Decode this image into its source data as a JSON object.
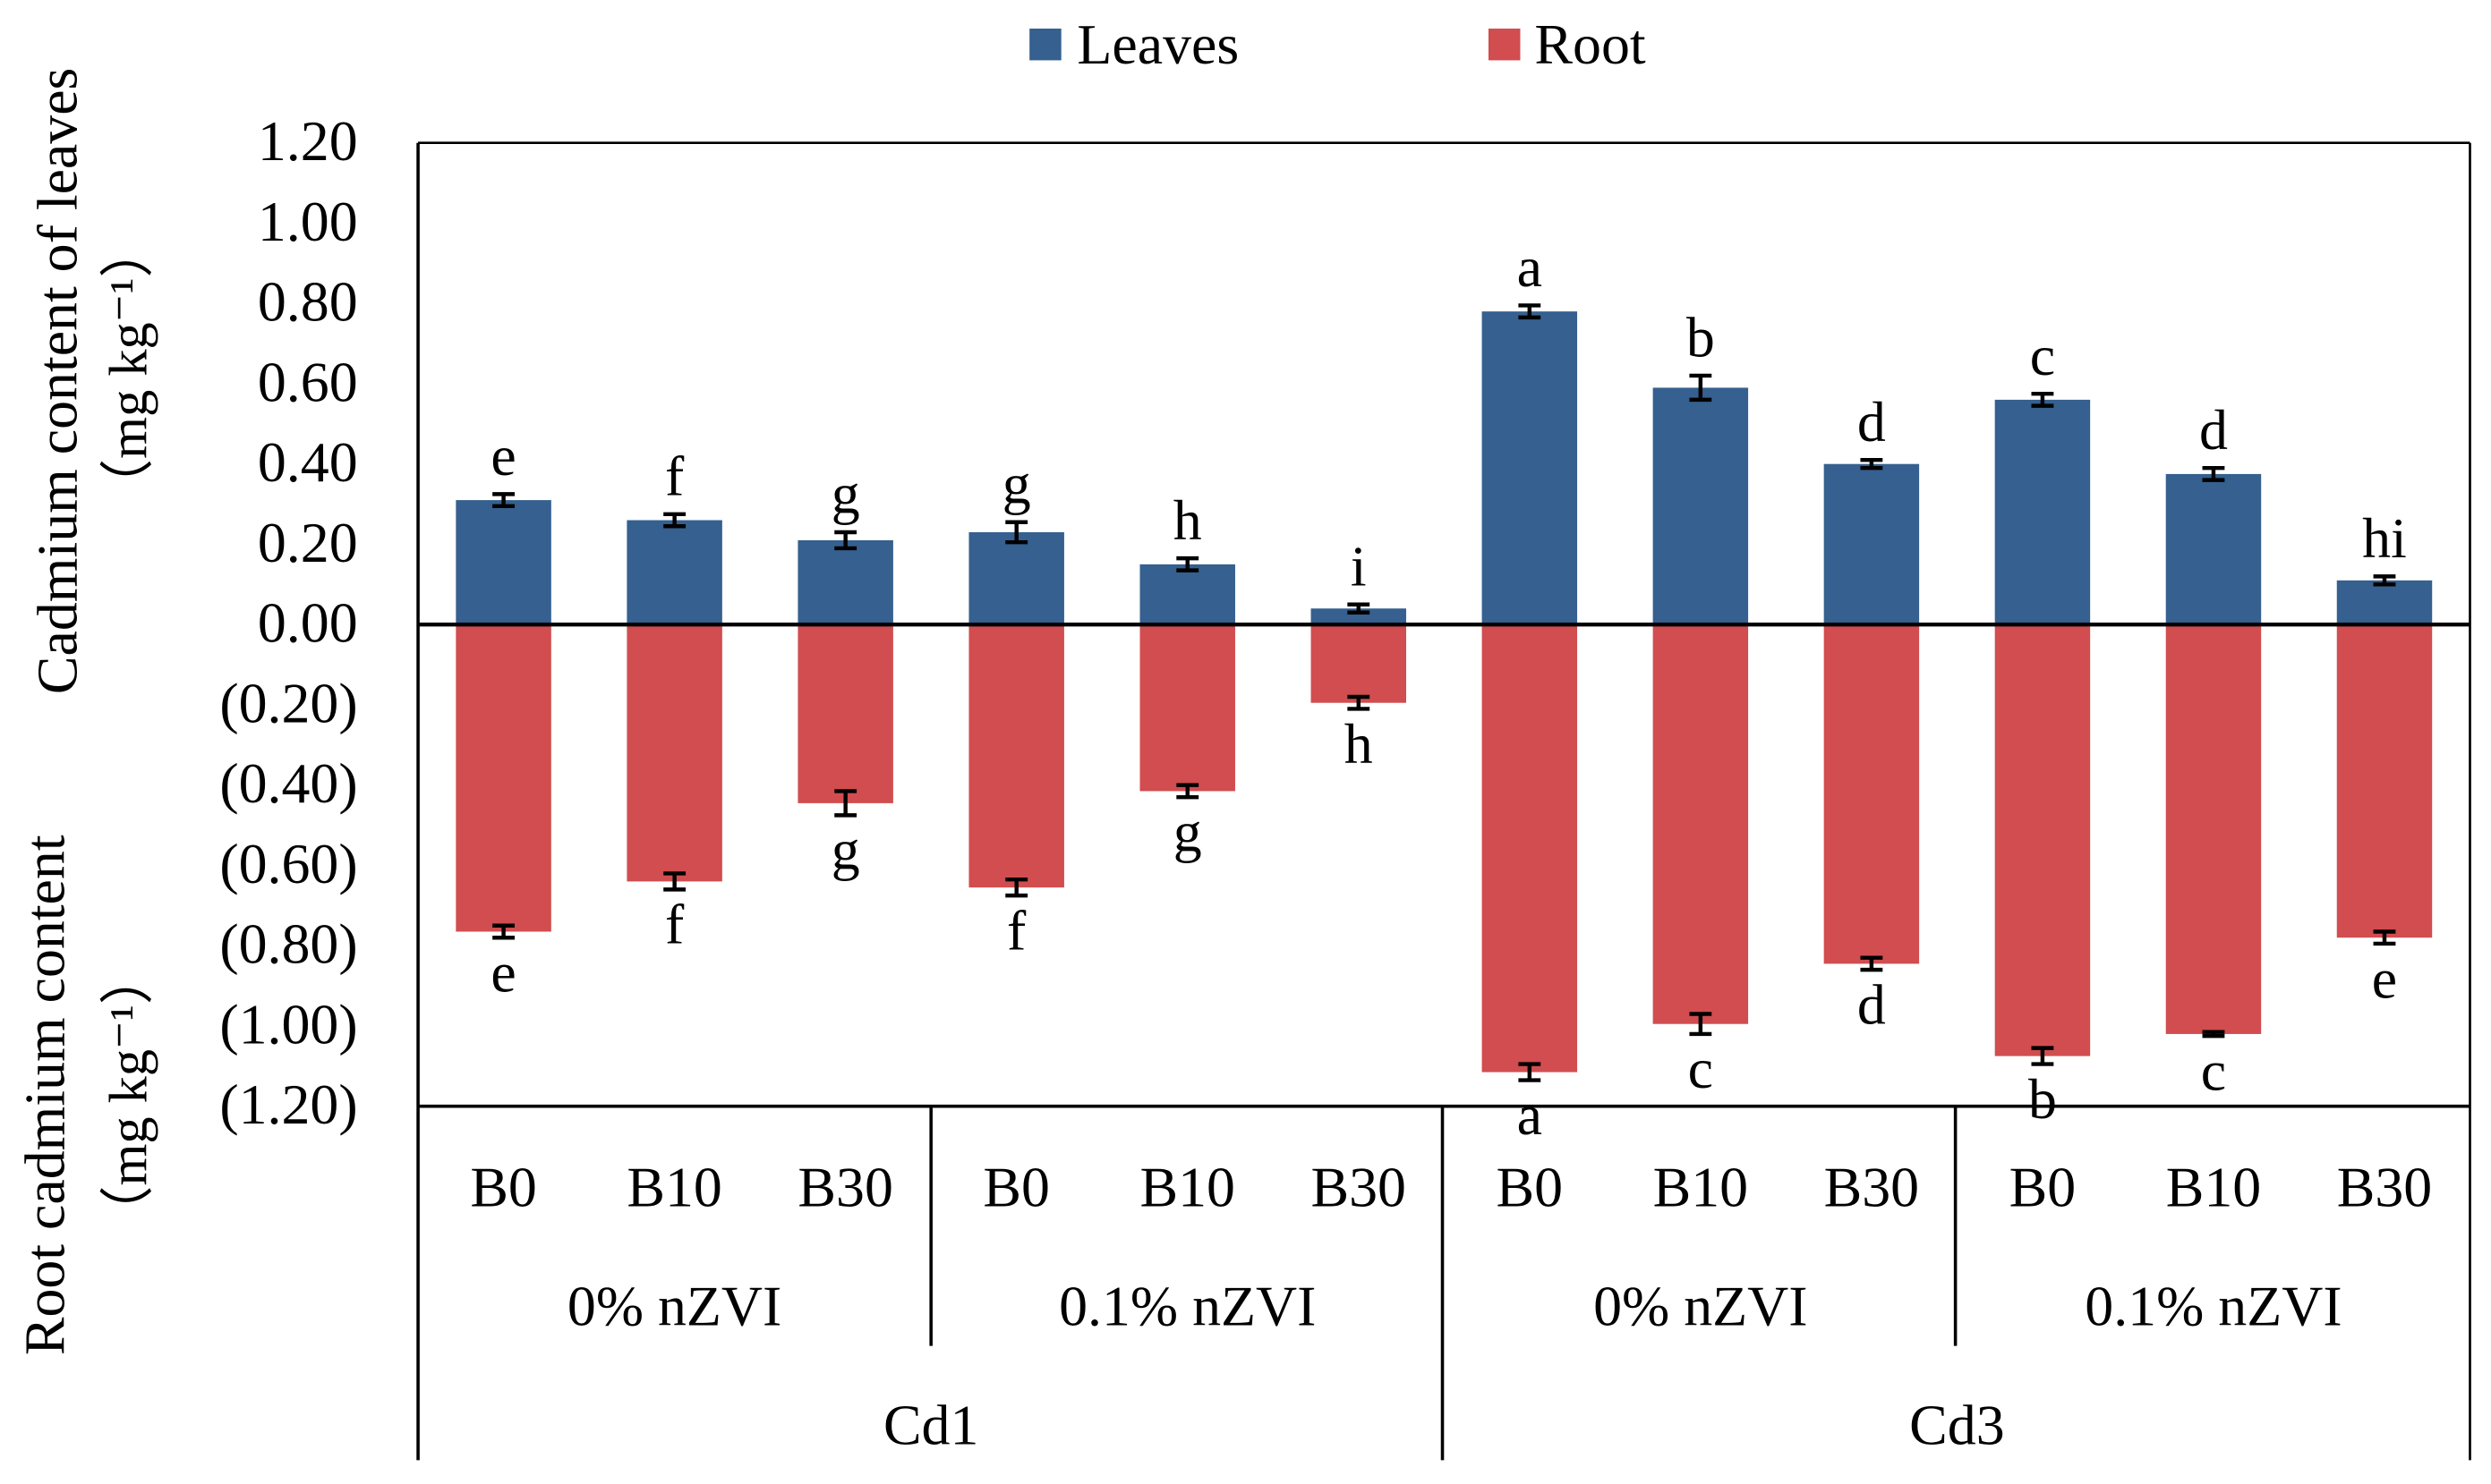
{
  "chart_data": {
    "type": "bar",
    "legend": [
      {
        "name": "Leaves",
        "color": "#35608f"
      },
      {
        "name": "Root",
        "color": "#d14d4f"
      }
    ],
    "legend_position": "top-center",
    "ylabel_top": "Cadmium content of leaves",
    "ylabel_top_unit": "（mg kg⁻¹）",
    "ylabel_bottom": "Root cadmium content",
    "ylabel_bottom_unit": "（mg kg⁻¹）",
    "ylim": [
      -1.2,
      1.2
    ],
    "yticks": [
      1.2,
      1.0,
      0.8,
      0.6,
      0.4,
      0.2,
      0.0,
      -0.2,
      -0.4,
      -0.6,
      -0.8,
      -1.0,
      -1.2
    ],
    "ytick_labels": [
      "1.20",
      "1.00",
      "0.80",
      "0.60",
      "0.40",
      "0.20",
      "0.00",
      "(0.20)",
      "(0.40)",
      "(0.60)",
      "(0.80)",
      "(1.00)",
      "(1.20)"
    ],
    "categories": [
      "B0",
      "B10",
      "B30",
      "B0",
      "B10",
      "B30",
      "B0",
      "B10",
      "B30",
      "B0",
      "B10",
      "B30"
    ],
    "subgroups": [
      "0% nZVI",
      "0.1% nZVI",
      "0% nZVI",
      "0.1% nZVI"
    ],
    "groups": [
      "Cd1",
      "Cd3"
    ],
    "series": [
      {
        "name": "Leaves",
        "values": [
          0.31,
          0.26,
          0.21,
          0.23,
          0.15,
          0.04,
          0.78,
          0.59,
          0.4,
          0.56,
          0.375,
          0.11
        ],
        "errors": [
          0.015,
          0.015,
          0.02,
          0.025,
          0.015,
          0.01,
          0.015,
          0.03,
          0.01,
          0.015,
          0.015,
          0.01
        ],
        "letters": [
          "e",
          "f",
          "g",
          "g",
          "h",
          "i",
          "a",
          "b",
          "d",
          "c",
          "d",
          "hi"
        ]
      },
      {
        "name": "Root",
        "values": [
          -0.765,
          -0.64,
          -0.445,
          -0.655,
          -0.415,
          -0.195,
          -1.115,
          -0.995,
          -0.845,
          -1.075,
          -1.02,
          -0.78
        ],
        "errors": [
          0.015,
          0.02,
          0.03,
          0.02,
          0.015,
          0.015,
          0.02,
          0.025,
          0.015,
          0.02,
          0.005,
          0.015
        ],
        "letters": [
          "e",
          "f",
          "g",
          "f",
          "g",
          "h",
          "a",
          "c",
          "d",
          "b",
          "c",
          "e"
        ]
      }
    ]
  }
}
